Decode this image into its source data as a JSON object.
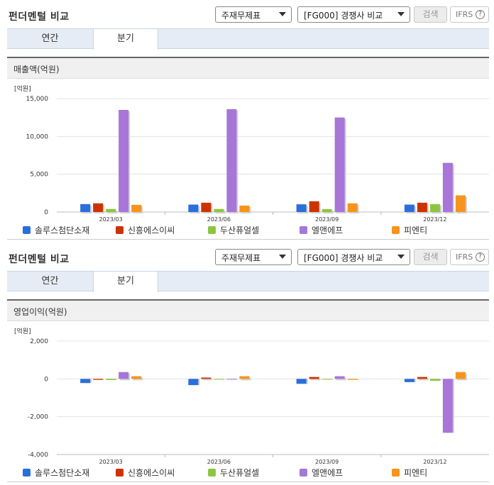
{
  "colors": {
    "series": [
      "#2a6fdb",
      "#cc3300",
      "#8cc63f",
      "#a776d8",
      "#f7941d"
    ]
  },
  "panels": [
    {
      "header": {
        "title": "펀더멘털 비교",
        "select_a": "주재무제표",
        "select_b": "[FG000] 경쟁사 비교",
        "search_label": "검색",
        "ifrs_label": "IFRS",
        "help_label": "?"
      },
      "tabs": [
        "연간",
        "분기"
      ],
      "selected_tab": "분기",
      "chart_title": "매출액(억원)",
      "chart_data": {
        "type": "bar",
        "unit_label": "[억원]",
        "categories": [
          "2023/03",
          "2023/06",
          "2023/09",
          "2023/12"
        ],
        "yticks": [
          0,
          5000,
          10000,
          15000
        ],
        "ytick_labels": [
          "0",
          "5,000",
          "10,000",
          "15,000"
        ],
        "ylim": [
          0,
          15000
        ],
        "grid": true,
        "legend": "bottom",
        "series": [
          {
            "name": "솔루스첨단소재",
            "values": [
              1050,
              980,
              1020,
              980
            ]
          },
          {
            "name": "신흥에스이씨",
            "values": [
              1150,
              1230,
              1420,
              1230
            ]
          },
          {
            "name": "두산퓨얼셀",
            "values": [
              400,
              400,
              380,
              1050
            ]
          },
          {
            "name": "엘앤에프",
            "values": [
              13500,
              13600,
              12500,
              6500
            ]
          },
          {
            "name": "피엔티",
            "values": [
              950,
              850,
              1150,
              2200
            ]
          }
        ]
      }
    },
    {
      "header": {
        "title": "펀더멘털 비교",
        "select_a": "주재무제표",
        "select_b": "[FG000] 경쟁사 비교",
        "search_label": "검색",
        "ifrs_label": "IFRS",
        "help_label": "?"
      },
      "tabs": [
        "연간",
        "분기"
      ],
      "selected_tab": "분기",
      "chart_title": "영업이익(억원)",
      "chart_data": {
        "type": "bar",
        "unit_label": "[억원]",
        "categories": [
          "2023/03",
          "2023/06",
          "2023/09",
          "2023/12"
        ],
        "yticks": [
          -4000,
          -2000,
          0,
          2000
        ],
        "ytick_labels": [
          "-4,000",
          "-2,000",
          "0",
          "2,000"
        ],
        "ylim": [
          -4000,
          2000
        ],
        "grid": true,
        "legend": "bottom",
        "series": [
          {
            "name": "솔루스첨단소재",
            "values": [
              -220,
              -330,
              -260,
              -170
            ]
          },
          {
            "name": "신흥에스이씨",
            "values": [
              -50,
              70,
              100,
              100
            ]
          },
          {
            "name": "두산퓨얼셀",
            "values": [
              -60,
              -15,
              -15,
              -100
            ]
          },
          {
            "name": "엘앤에프",
            "values": [
              360,
              -15,
              140,
              -2850
            ]
          },
          {
            "name": "피엔티",
            "values": [
              140,
              140,
              -50,
              360
            ]
          }
        ]
      }
    }
  ]
}
